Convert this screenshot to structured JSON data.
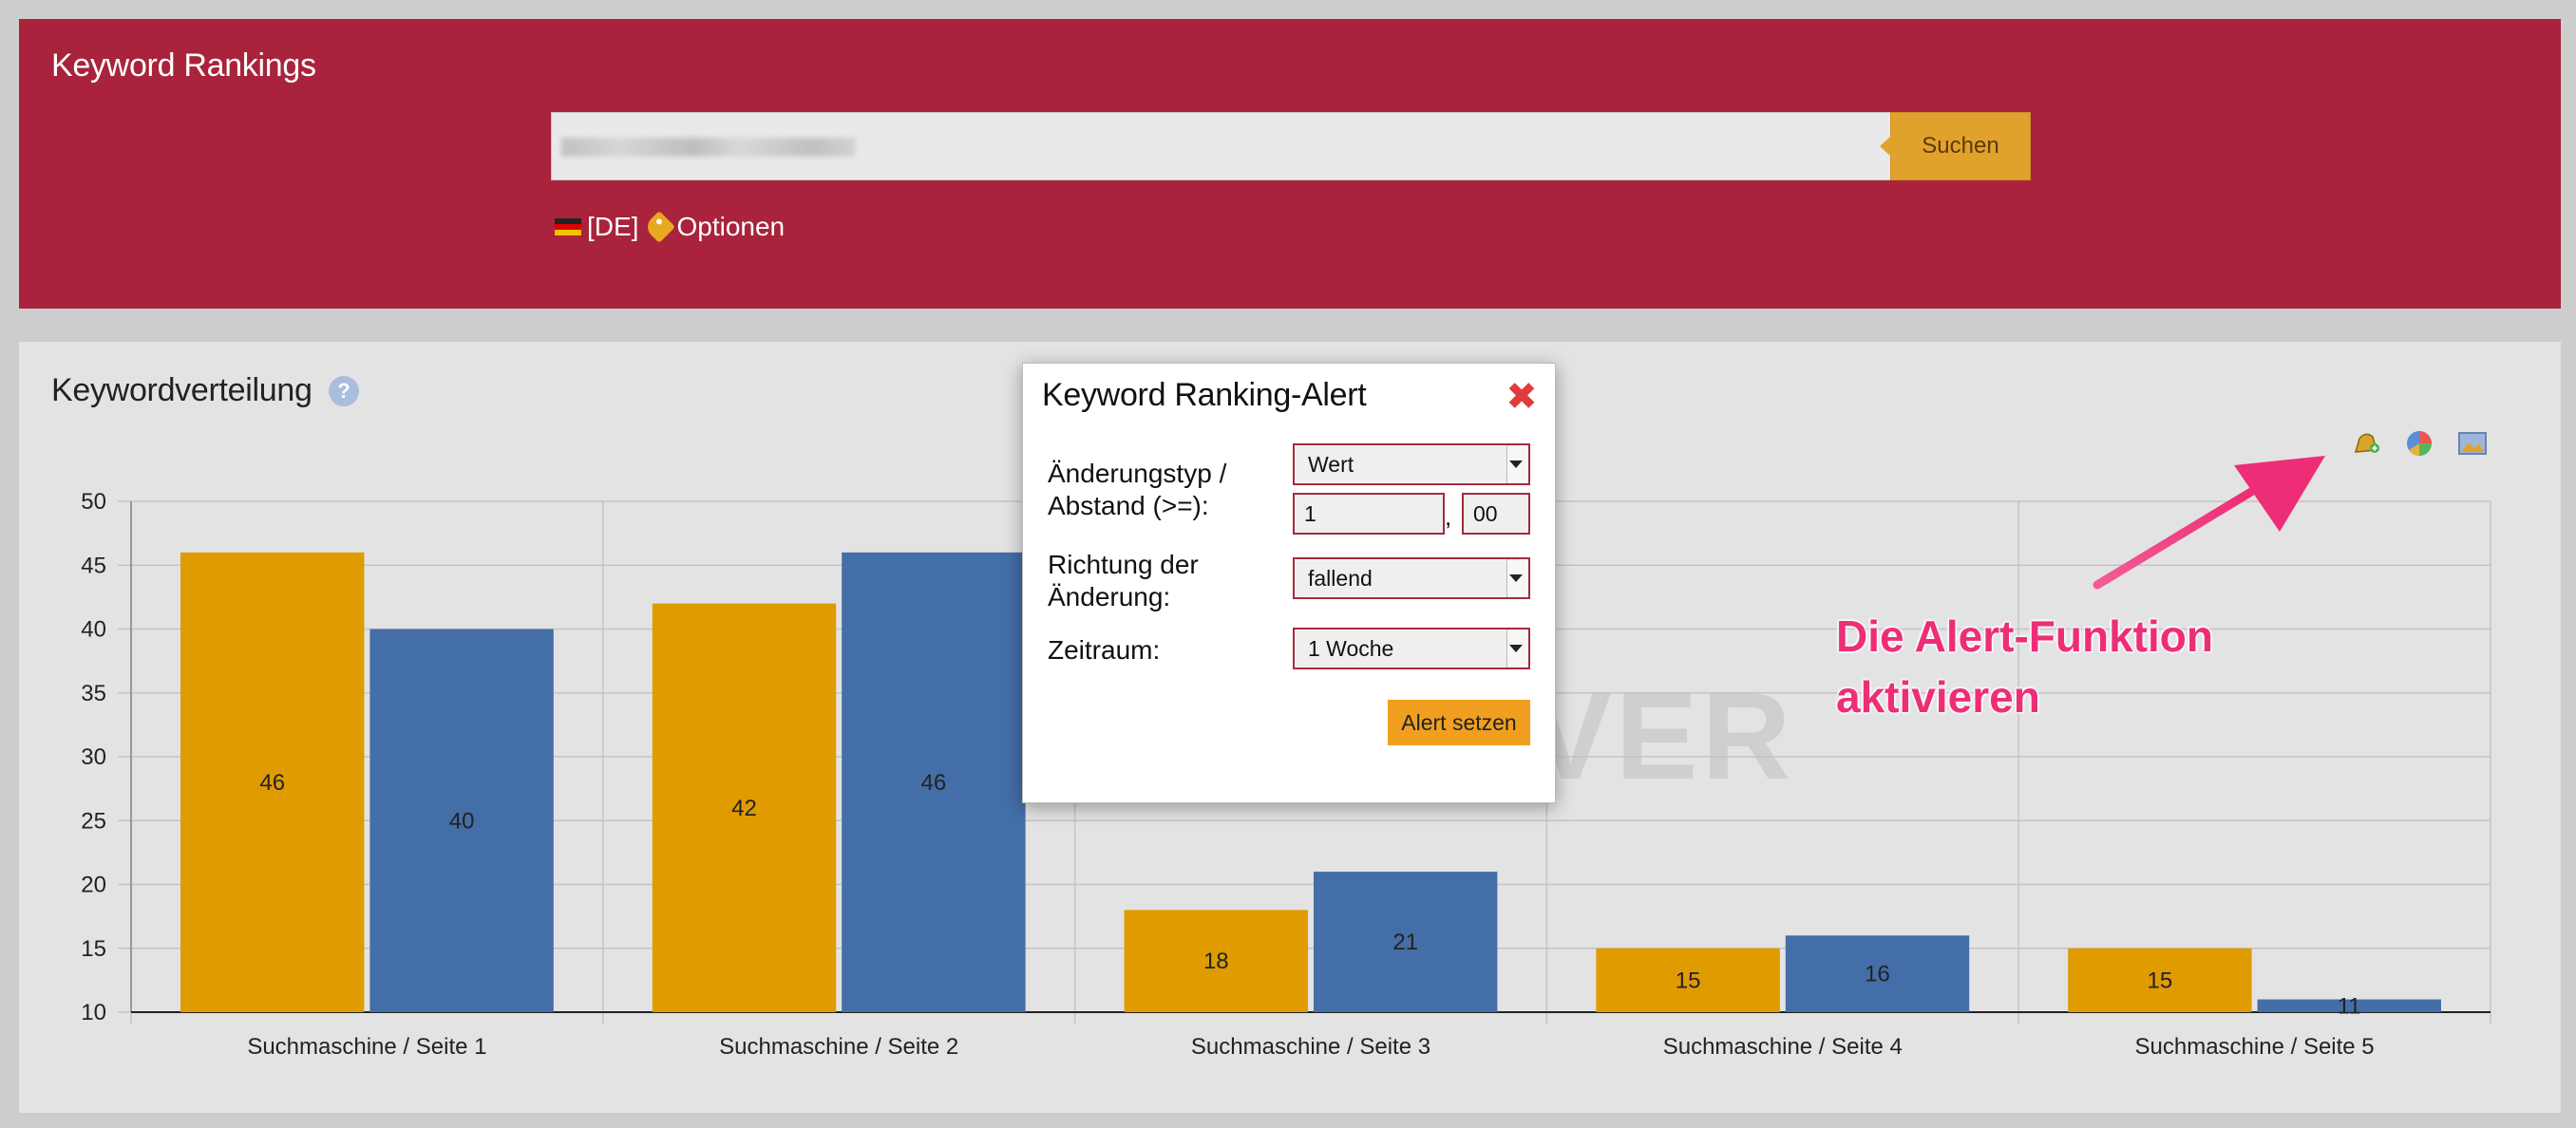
{
  "header": {
    "title": "Keyword Rankings",
    "search": {
      "value": "",
      "button_label": "Suchen"
    },
    "country_label": "[DE]",
    "options_label": "Optionen"
  },
  "panel": {
    "title": "Keywordverteilung",
    "help_label": "?",
    "watermark": "VER",
    "tools": [
      "alert-bell-icon",
      "pie-chart-icon",
      "image-export-icon"
    ]
  },
  "annotation": {
    "line1": "Die Alert-Funktion",
    "line2": "aktivieren",
    "color": "#ee2d77"
  },
  "modal": {
    "title": "Keyword Ranking-Alert",
    "close_icon": "close-icon",
    "change_type_label_1": "Änderungstyp /",
    "change_type_label_2": "Abstand (>=):",
    "change_type_value": "Wert",
    "distance_integer": "1",
    "distance_separator": ",",
    "distance_decimal": "00",
    "direction_label_1": "Richtung der",
    "direction_label_2": "Änderung:",
    "direction_value": "fallend",
    "period_label": "Zeitraum:",
    "period_value": "1 Woche",
    "submit_label": "Alert setzen"
  },
  "colors": {
    "header_bg": "#a8233b",
    "series_a": "#e09b00",
    "series_b": "#446ea7",
    "accent": "#f0a01e"
  },
  "chart_data": {
    "type": "bar",
    "categories": [
      "Suchmaschine / Seite 1",
      "Suchmaschine / Seite 2",
      "Suchmaschine / Seite 3",
      "Suchmaschine / Seite 4",
      "Suchmaschine / Seite 5"
    ],
    "series": [
      {
        "values": [
          46,
          42,
          18,
          15,
          15
        ],
        "color": "#e09b00"
      },
      {
        "values": [
          40,
          46,
          21,
          16,
          11
        ],
        "color": "#446ea7"
      }
    ],
    "yticks": [
      10,
      15,
      20,
      25,
      30,
      35,
      40,
      45,
      50
    ],
    "ylim": [
      10,
      50
    ],
    "grid": true,
    "title": "",
    "xlabel": "",
    "ylabel": ""
  }
}
